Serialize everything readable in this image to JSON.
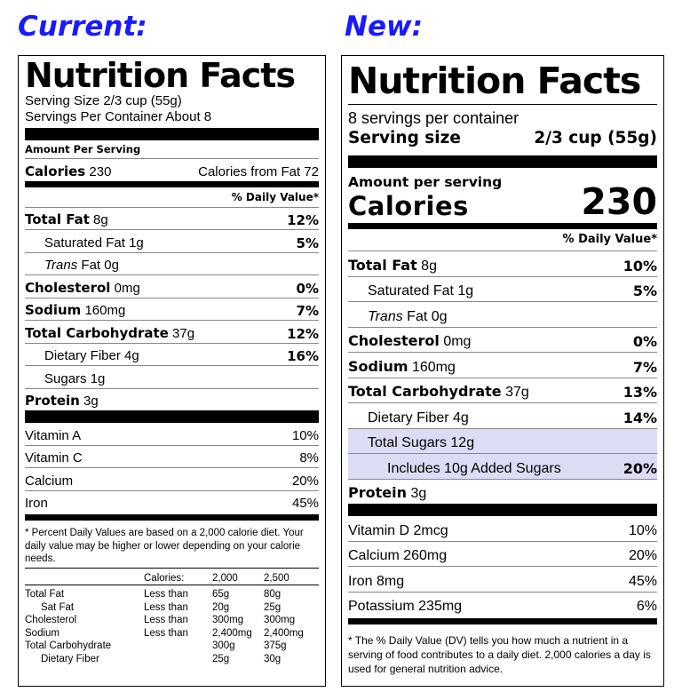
{
  "headings": {
    "current": "Current:",
    "new": "New:"
  },
  "current": {
    "title": "Nutrition Facts",
    "serving_size": "Serving Size 2/3 cup (55g)",
    "servings_per_container": "Servings Per Container About 8",
    "amount_per_serving": "Amount Per Serving",
    "calories_label": "Calories",
    "calories_value": "230",
    "calories_from_fat": "Calories from Fat 72",
    "dv_header": "% Daily Value*",
    "nutrients": [
      {
        "name": "Total Fat",
        "amount": "8g",
        "dv": "12%"
      },
      {
        "name": "Saturated Fat",
        "amount": "1g",
        "dv": "5%"
      },
      {
        "name": "Trans",
        "amount": "Fat 0g",
        "dv": ""
      },
      {
        "name": "Cholesterol",
        "amount": "0mg",
        "dv": "0%"
      },
      {
        "name": "Sodium",
        "amount": "160mg",
        "dv": "7%"
      },
      {
        "name": "Total Carbohydrate",
        "amount": "37g",
        "dv": "12%"
      },
      {
        "name": "Dietary Fiber",
        "amount": "4g",
        "dv": "16%"
      },
      {
        "name": "Sugars",
        "amount": "1g",
        "dv": ""
      },
      {
        "name": "Protein",
        "amount": "3g",
        "dv": ""
      }
    ],
    "vitamins": [
      {
        "name": "Vitamin A",
        "dv": "10%"
      },
      {
        "name": "Vitamin C",
        "dv": "8%"
      },
      {
        "name": "Calcium",
        "dv": "20%"
      },
      {
        "name": "Iron",
        "dv": "45%"
      }
    ],
    "footnote": "* Percent Daily Values are based on a 2,000 calorie diet. Your daily value may be higher or lower depending on your calorie needs.",
    "footnote_table": {
      "header": [
        "",
        "Calories:",
        "2,000",
        "2,500"
      ],
      "rows": [
        [
          "Total Fat",
          "Less than",
          "65g",
          "80g"
        ],
        [
          "Sat Fat",
          "Less than",
          "20g",
          "25g"
        ],
        [
          "Cholesterol",
          "Less than",
          "300mg",
          "300mg"
        ],
        [
          "Sodium",
          "Less than",
          "2,400mg",
          "2,400mg"
        ],
        [
          "Total Carbohydrate",
          "",
          "300g",
          "375g"
        ],
        [
          "Dietary Fiber",
          "",
          "25g",
          "30g"
        ]
      ]
    }
  },
  "new": {
    "title": "Nutrition Facts",
    "servings_per_container": "8 servings per container",
    "serving_size_label": "Serving size",
    "serving_size_value": "2/3 cup (55g)",
    "amount_per_serving": "Amount per serving",
    "calories_label": "Calories",
    "calories_value": "230",
    "dv_header": "% Daily Value*",
    "nutrients": [
      {
        "name": "Total Fat",
        "amount": "8g",
        "dv": "10%"
      },
      {
        "name": "Saturated Fat",
        "amount": "1g",
        "dv": "5%"
      },
      {
        "name": "Trans",
        "amount": "Fat 0g",
        "dv": ""
      },
      {
        "name": "Cholesterol",
        "amount": "0mg",
        "dv": "0%"
      },
      {
        "name": "Sodium",
        "amount": "160mg",
        "dv": "7%"
      },
      {
        "name": "Total Carbohydrate",
        "amount": "37g",
        "dv": "13%"
      },
      {
        "name": "Dietary Fiber",
        "amount": "4g",
        "dv": "14%"
      },
      {
        "name": "Total Sugars",
        "amount": "12g",
        "dv": ""
      },
      {
        "name": "Includes 10g Added Sugars",
        "amount": "",
        "dv": "20%"
      },
      {
        "name": "Protein",
        "amount": "3g",
        "dv": ""
      }
    ],
    "vitamins": [
      {
        "name": "Vitamin D 2mcg",
        "dv": "10%"
      },
      {
        "name": "Calcium 260mg",
        "dv": "20%"
      },
      {
        "name": "Iron 8mg",
        "dv": "45%"
      },
      {
        "name": "Potassium 235mg",
        "dv": "6%"
      }
    ],
    "footnote": "* The % Daily Value (DV) tells you how much a nutrient in a serving of food contributes to a daily diet. 2,000 calories a day is used for general nutrition advice."
  }
}
